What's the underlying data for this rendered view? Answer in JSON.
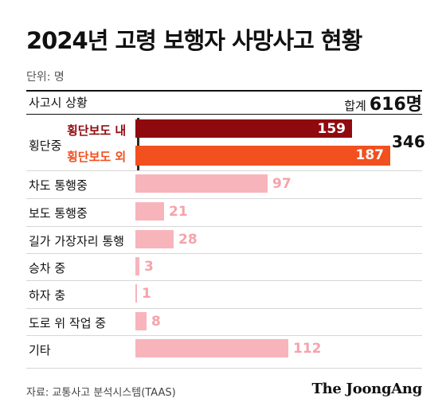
{
  "title": "2024년 고령 보행자 사망사고 현황",
  "unit": "단위: 명",
  "header": {
    "label": "사고시 상황",
    "total_prefix": "합계",
    "total_value": "616명"
  },
  "source": "자료: 교통사고 분석시스템(TAAS)",
  "brand": "The JoongAng",
  "colors": {
    "dark_red": "#8f0a0f",
    "orange_red": "#f2501f",
    "pink": "#f8b4bb",
    "pink_text": "#f5a3ab"
  },
  "chart_data": {
    "type": "bar",
    "orientation": "horizontal",
    "unit": "명",
    "group": {
      "label": "횡단중",
      "total": 346
    },
    "categories": [
      "횡단보도 내",
      "횡단보도 외",
      "차도 통행중",
      "보도 통행중",
      "길가 가장자리 통행",
      "승차 중",
      "하자 충",
      "도로 위 작업 중",
      "기타"
    ],
    "values": [
      159,
      187,
      97,
      21,
      28,
      3,
      1,
      8,
      112
    ]
  }
}
